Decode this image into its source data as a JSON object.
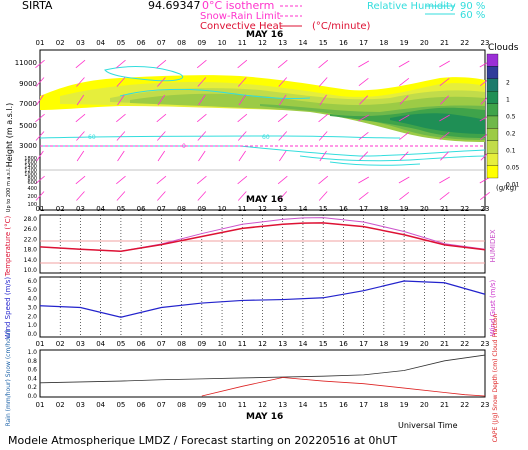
{
  "header": {
    "station": "SIRTA",
    "coords": "94.69347",
    "legend_isotherm": "0°C isotherm",
    "legend_snowrain": "Snow-Rain Limit",
    "legend_convective": "Convective Heat",
    "legend_convective_unit": "(°C/minute)",
    "legend_rh": "Relative Humidity",
    "rh_90": "90 %",
    "rh_60": "60 %"
  },
  "hours": [
    "01",
    "02",
    "03",
    "04",
    "05",
    "06",
    "07",
    "08",
    "09",
    "10",
    "11",
    "12",
    "13",
    "14",
    "15",
    "16",
    "17",
    "18",
    "19",
    "20",
    "21",
    "22",
    "23"
  ],
  "date_label": "MAY 16",
  "footer": {
    "title": "Modele Atmospherique LMDZ / Forecast starting on 20220516 at 0hUT",
    "universal_time": "Universal Time"
  },
  "panels": {
    "clouds": {
      "ylabel": "Height (m a.s.l.)",
      "ylabel_low": "Up to 200 m a.s.l.",
      "yticks": [
        "11000",
        "9000",
        "7000",
        "5000",
        "3000",
        "1800",
        "1600",
        "1400",
        "1200",
        "1000",
        "800",
        "600",
        "400",
        "200",
        "100"
      ],
      "colorbar_title": "Clouds",
      "colorbar_unit": "(g/kg)",
      "colorbar_labels": [
        "2",
        "1",
        "0.5",
        "0.2",
        "0.1",
        "0.05",
        "0.01"
      ],
      "rh_contour_label": "60",
      "isotherm_label": "0"
    },
    "temperature": {
      "ylabel": "Temperature (°C)",
      "ylabel_right": "HUMIDEX",
      "yticks": [
        "28.0",
        "26.0",
        "22.0",
        "18.0",
        "14.0",
        "10.0"
      ]
    },
    "wind": {
      "ylabel": "Wind Speed (m/s)",
      "ylabel_right": "Wind Gust (m/s)",
      "yticks": [
        "6.0",
        "5.0",
        "4.0",
        "3.0",
        "2.0",
        "1.0",
        "0.0"
      ]
    },
    "rain": {
      "ylabel": "Rain (mm/hour) Snow (cm/hour)",
      "ylabel_right": "CAPE (J/g) Snow Depth (cm) Cloud Fraction",
      "yticks": [
        "1.0",
        "0.8",
        "0.6",
        "0.4",
        "0.2",
        "0.0"
      ]
    }
  },
  "colors": {
    "cloud_levels": [
      "#ffff00",
      "#e6ee3c",
      "#c2dc4a",
      "#9ccb46",
      "#6fb84a",
      "#3fa34a",
      "#1f8f55",
      "#1c7a6b",
      "#303c9a",
      "#9b2fd6"
    ],
    "rh_contour": "#33dddd",
    "isotherm": "#ff33cc",
    "temperature": "#dd1133",
    "humidex": "#cc55cc",
    "wind": "#2222cc",
    "cloud_fraction": "#333333",
    "cape": "#dd2222",
    "wind_barb": "#ff33cc"
  },
  "chart_data": [
    {
      "type": "line",
      "name": "temperature",
      "x": [
        1,
        3,
        5,
        7,
        9,
        11,
        13,
        14,
        15,
        17,
        19,
        21,
        23
      ],
      "series": [
        {
          "values": [
            19.0,
            18.2,
            17.5,
            19.8,
            22.6,
            25.4,
            26.8,
            27.2,
            27.3,
            26.0,
            23.2,
            19.7,
            18.0
          ]
        },
        {
          "values": [
            19.0,
            18.2,
            17.5,
            20.0,
            23.6,
            26.8,
            28.5,
            29.0,
            29.1,
            27.6,
            24.3,
            20.1,
            18.2
          ]
        }
      ]
    },
    {
      "type": "line",
      "name": "wind",
      "x": [
        1,
        3,
        5,
        7,
        9,
        11,
        13,
        15,
        17,
        19,
        21,
        23
      ],
      "series": [
        {
          "values": [
            3.2,
            3.0,
            1.9,
            3.0,
            3.5,
            3.8,
            3.9,
            4.1,
            4.9,
            6.0,
            5.8,
            4.5
          ]
        }
      ]
    },
    {
      "type": "line",
      "name": "rain",
      "x": [
        1,
        3,
        5,
        7,
        9,
        11,
        13,
        15,
        17,
        19,
        21,
        23
      ],
      "series": [
        {
          "values": [
            0.3,
            0.32,
            0.34,
            0.37,
            0.39,
            0.41,
            0.43,
            0.45,
            0.48,
            0.58,
            0.8,
            0.93
          ]
        },
        {
          "x": [
            9,
            11,
            13,
            15,
            17,
            19,
            21,
            22,
            23
          ],
          "values": [
            0.0,
            0.22,
            0.42,
            0.34,
            0.28,
            0.18,
            0.08,
            0.03,
            0.0
          ]
        }
      ]
    }
  ]
}
